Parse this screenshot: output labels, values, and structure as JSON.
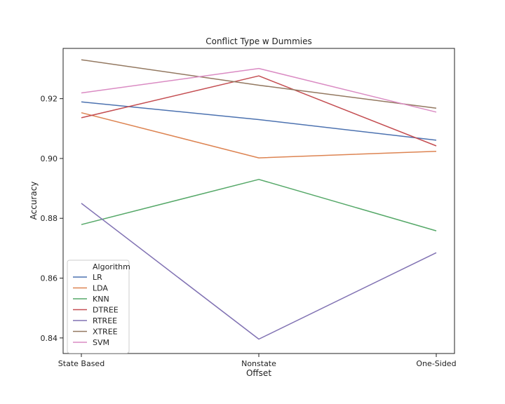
{
  "chart_data": {
    "type": "line",
    "title": "Conflict Type w Dummies",
    "xlabel": "Offset",
    "ylabel": "Accuracy",
    "categories": [
      "State Based",
      "Nonstate",
      "One-Sided"
    ],
    "yticks": [
      "0.84",
      "0.86",
      "0.88",
      "0.90",
      "0.92"
    ],
    "ytick_values": [
      0.84,
      0.86,
      0.88,
      0.9,
      0.92
    ],
    "ylim": [
      0.8348,
      0.9368
    ],
    "grid": false,
    "legend": {
      "title": "Algorithm",
      "placement": "lower-left"
    },
    "series": [
      {
        "name": "LR",
        "color": "#4c72b0",
        "values": [
          0.9189,
          0.913,
          0.9061
        ]
      },
      {
        "name": "LDA",
        "color": "#dd8452",
        "values": [
          0.9153,
          0.9002,
          0.9024
        ]
      },
      {
        "name": "KNN",
        "color": "#55a868",
        "values": [
          0.8779,
          0.893,
          0.8758
        ]
      },
      {
        "name": "DTREE",
        "color": "#c44e52",
        "values": [
          0.9136,
          0.9276,
          0.9042
        ]
      },
      {
        "name": "RTREE",
        "color": "#8172b3",
        "values": [
          0.885,
          0.8396,
          0.8685
        ]
      },
      {
        "name": "XTREE",
        "color": "#937860",
        "values": [
          0.933,
          0.9245,
          0.9168
        ]
      },
      {
        "name": "SVM",
        "color": "#da8bc3",
        "values": [
          0.9219,
          0.9301,
          0.9155
        ]
      }
    ]
  }
}
